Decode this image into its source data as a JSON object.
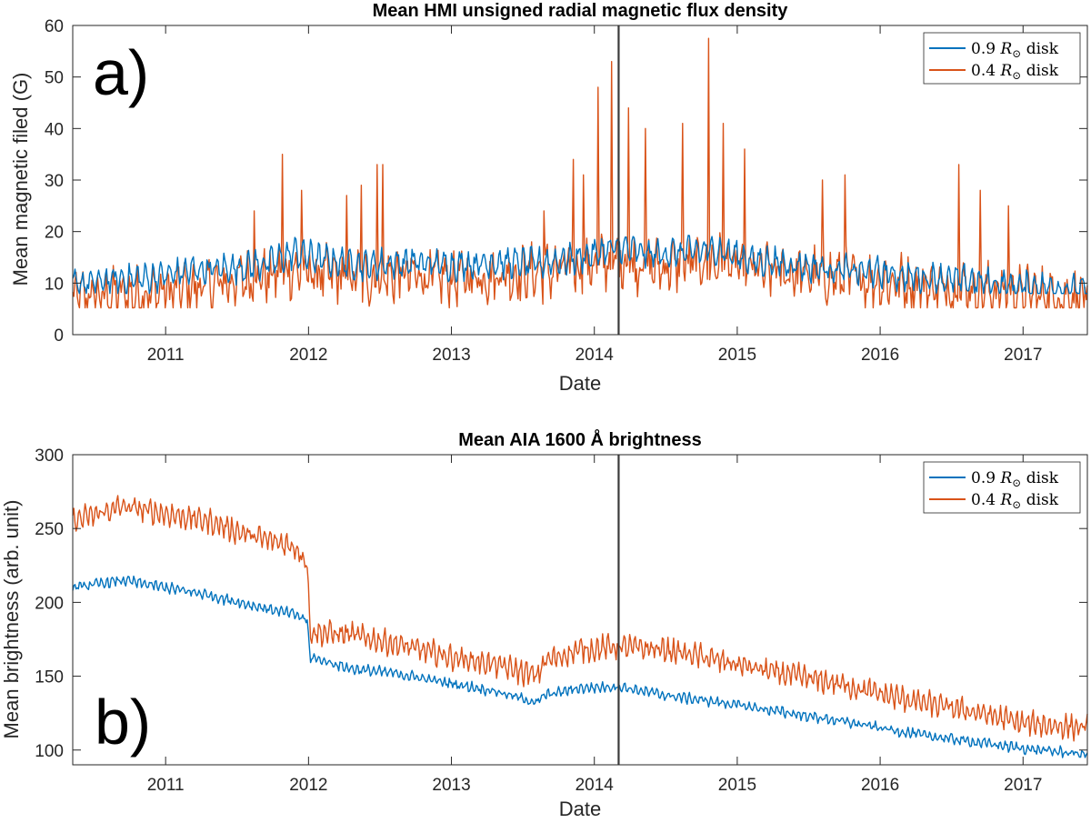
{
  "chart_data": [
    {
      "type": "line",
      "panel_label": "a)",
      "title": "Mean HMI unsigned radial magnetic flux density",
      "xlabel": "Date",
      "ylabel": "Mean magnetic filed (G)",
      "xlim": [
        2010.35,
        2017.45
      ],
      "ylim": [
        0,
        60
      ],
      "x_ticks": [
        2011,
        2012,
        2013,
        2014,
        2015,
        2016,
        2017
      ],
      "x_tick_labels": [
        "2011",
        "2012",
        "2013",
        "2014",
        "2015",
        "2016",
        "2017"
      ],
      "y_ticks": [
        0,
        10,
        20,
        30,
        40,
        50,
        60
      ],
      "y_tick_labels": [
        "0",
        "10",
        "20",
        "30",
        "40",
        "50",
        "60"
      ],
      "vline_x": 2014.17,
      "legend_position": "top-right",
      "colors": {
        "series_09": "#0072BD",
        "series_04": "#D95319",
        "vline": "#3b3b3b"
      },
      "series": [
        {
          "name": "0.9 R⊙ disk",
          "legend_prefix": "0.9 ",
          "legend_symbol": "R",
          "legend_subscript": "⊙",
          "legend_suffix": " disk",
          "x": [
            2010.35,
            2010.6,
            2010.9,
            2011.2,
            2011.5,
            2011.75,
            2011.9,
            2012.1,
            2012.4,
            2012.7,
            2013.0,
            2013.3,
            2013.6,
            2013.9,
            2014.17,
            2014.4,
            2014.6,
            2014.85,
            2015.1,
            2015.4,
            2015.7,
            2016.0,
            2016.3,
            2016.6,
            2016.9,
            2017.2,
            2017.45
          ],
          "values": [
            9.5,
            10.5,
            11,
            12.5,
            13,
            14,
            16,
            14.5,
            13.5,
            14,
            13.5,
            14,
            13.8,
            15,
            17,
            15.5,
            16,
            16.5,
            14.5,
            13.5,
            12.5,
            12,
            11,
            10.5,
            9.5,
            9,
            8.5
          ]
        },
        {
          "name": "0.4 R⊙ disk",
          "legend_prefix": "0.4 ",
          "legend_symbol": "R",
          "legend_subscript": "⊙",
          "legend_suffix": " disk",
          "x": [
            2010.35,
            2010.6,
            2010.9,
            2011.2,
            2011.5,
            2011.75,
            2011.9,
            2012.1,
            2012.4,
            2012.7,
            2013.0,
            2013.3,
            2013.6,
            2013.9,
            2014.17,
            2014.4,
            2014.6,
            2014.85,
            2015.1,
            2015.4,
            2015.7,
            2016.0,
            2016.3,
            2016.6,
            2016.9,
            2017.2,
            2017.45
          ],
          "values": [
            7,
            7.5,
            8,
            9,
            10.5,
            11.5,
            12.5,
            11.5,
            11,
            11.5,
            11,
            11.5,
            12,
            13,
            14.5,
            13,
            13.5,
            14,
            12.5,
            12,
            11,
            10.5,
            9.5,
            9,
            8,
            7.5,
            7
          ],
          "peaks": [
            {
              "x": 2011.82,
              "y": 35
            },
            {
              "x": 2011.95,
              "y": 28
            },
            {
              "x": 2011.62,
              "y": 24
            },
            {
              "x": 2012.48,
              "y": 33
            },
            {
              "x": 2012.52,
              "y": 33
            },
            {
              "x": 2012.27,
              "y": 27
            },
            {
              "x": 2012.37,
              "y": 29
            },
            {
              "x": 2013.65,
              "y": 24
            },
            {
              "x": 2013.85,
              "y": 34
            },
            {
              "x": 2013.92,
              "y": 31
            },
            {
              "x": 2014.03,
              "y": 48
            },
            {
              "x": 2014.12,
              "y": 53
            },
            {
              "x": 2014.24,
              "y": 44
            },
            {
              "x": 2014.36,
              "y": 40
            },
            {
              "x": 2014.62,
              "y": 41
            },
            {
              "x": 2014.8,
              "y": 57.5
            },
            {
              "x": 2014.9,
              "y": 41
            },
            {
              "x": 2015.05,
              "y": 36
            },
            {
              "x": 2015.6,
              "y": 30
            },
            {
              "x": 2015.75,
              "y": 31
            },
            {
              "x": 2016.55,
              "y": 33
            },
            {
              "x": 2016.7,
              "y": 28
            },
            {
              "x": 2016.9,
              "y": 25
            }
          ]
        }
      ]
    },
    {
      "type": "line",
      "panel_label": "b)",
      "title": "Mean AIA 1600 Å brightness",
      "xlabel": "Date",
      "ylabel": "Mean brightness (arb. unit)",
      "xlim": [
        2010.35,
        2017.45
      ],
      "ylim": [
        90,
        300
      ],
      "x_ticks": [
        2011,
        2012,
        2013,
        2014,
        2015,
        2016,
        2017
      ],
      "x_tick_labels": [
        "2011",
        "2012",
        "2013",
        "2014",
        "2015",
        "2016",
        "2017"
      ],
      "y_ticks": [
        100,
        150,
        200,
        250,
        300
      ],
      "y_tick_labels": [
        "100",
        "150",
        "200",
        "250",
        "300"
      ],
      "vline_x": 2014.17,
      "legend_position": "top-right",
      "colors": {
        "series_09": "#0072BD",
        "series_04": "#D95319",
        "vline": "#3b3b3b"
      },
      "series": [
        {
          "name": "0.9 R⊙ disk",
          "legend_prefix": "0.9 ",
          "legend_symbol": "R",
          "legend_subscript": "⊙",
          "legend_suffix": " disk",
          "x": [
            2010.35,
            2010.7,
            2011.0,
            2011.3,
            2011.6,
            2011.9,
            2011.99,
            2012.01,
            2012.3,
            2012.6,
            2013.0,
            2013.3,
            2013.6,
            2013.65,
            2013.9,
            2014.17,
            2014.5,
            2014.9,
            2015.3,
            2015.7,
            2016.0,
            2016.3,
            2016.7,
            2017.0,
            2017.45
          ],
          "values": [
            210,
            215,
            210,
            205,
            198,
            192,
            188,
            163,
            155,
            152,
            145,
            140,
            132,
            137,
            142,
            143,
            137,
            132,
            126,
            120,
            115,
            110,
            105,
            101,
            97
          ]
        },
        {
          "name": "0.4 R⊙ disk",
          "legend_prefix": "0.4 ",
          "legend_symbol": "R",
          "legend_subscript": "⊙",
          "legend_suffix": " disk",
          "x": [
            2010.35,
            2010.7,
            2011.0,
            2011.3,
            2011.6,
            2011.9,
            2011.99,
            2012.01,
            2012.3,
            2012.6,
            2013.0,
            2013.3,
            2013.6,
            2013.65,
            2013.9,
            2014.17,
            2014.5,
            2014.9,
            2015.3,
            2015.7,
            2016.0,
            2016.3,
            2016.7,
            2017.0,
            2017.45
          ],
          "values": [
            255,
            265,
            260,
            255,
            245,
            238,
            228,
            180,
            178,
            172,
            163,
            158,
            150,
            160,
            168,
            170,
            168,
            160,
            152,
            145,
            138,
            132,
            125,
            118,
            115
          ]
        }
      ]
    }
  ]
}
